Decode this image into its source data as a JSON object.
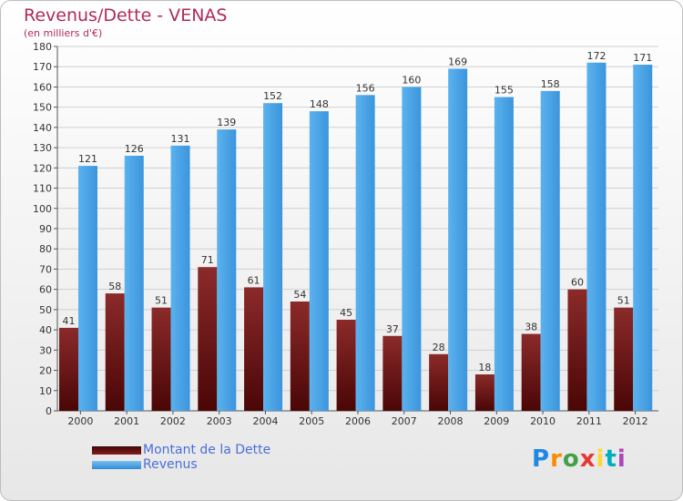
{
  "chart_data": {
    "type": "bar",
    "title": "Revenus/Dette - VENAS",
    "subtitle": "(en milliers d'€)",
    "categories": [
      "2000",
      "2001",
      "2002",
      "2003",
      "2004",
      "2005",
      "2006",
      "2007",
      "2008",
      "2009",
      "2010",
      "2011",
      "2012"
    ],
    "series": [
      {
        "name": "Montant de la Dette",
        "color": "#8b1a1a",
        "values": [
          41,
          58,
          51,
          71,
          61,
          54,
          45,
          37,
          28,
          18,
          38,
          60,
          51
        ]
      },
      {
        "name": "Revenus",
        "color": "#4da6e8",
        "values": [
          121,
          126,
          131,
          139,
          152,
          148,
          156,
          160,
          169,
          155,
          158,
          172,
          171
        ]
      }
    ],
    "ylim": [
      0,
      180
    ],
    "ytick_step": 10,
    "grid": true,
    "legend": "bottom-left"
  },
  "logo": {
    "text": "Proxiti",
    "letter_colors": [
      "#1e88e5",
      "#fb8c00",
      "#43a047",
      "#e53935",
      "#fdd835",
      "#00acc1",
      "#ab47bc"
    ]
  }
}
